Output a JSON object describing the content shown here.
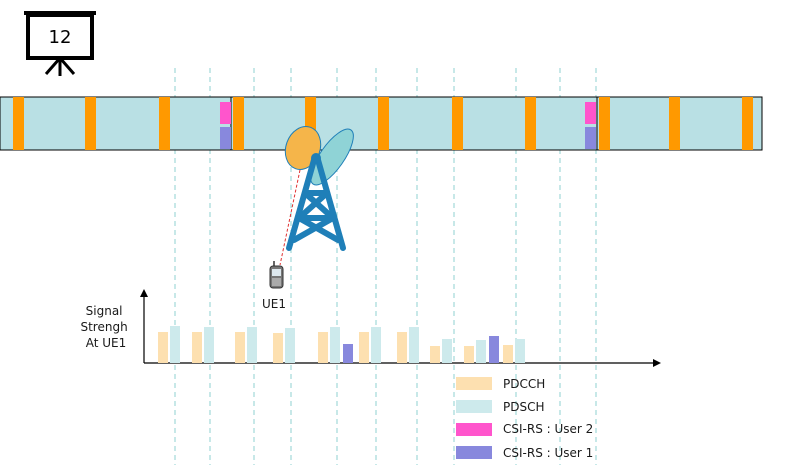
{
  "slide": {
    "number": "12"
  },
  "colors": {
    "pdcch": "#ff9900",
    "pdcch_light": "#fde0b0",
    "pdsch": "#b9e0e4",
    "pdsch_light": "#cdeaec",
    "csi_user2": "#ff55cc",
    "csi_user1": "#8888dd",
    "tower": "#1f7fb8",
    "grid_line": "#8fd0d0",
    "beam_orange": "#f5b54a",
    "beam_teal": "#8fd3d6"
  },
  "icons": {
    "slide": "projector-screen-icon",
    "tower": "cell-tower-icon",
    "ue": "mobile-phone-icon"
  },
  "labels": {
    "ue": "UE1",
    "y_axis_line1": "Signal",
    "y_axis_line2": "Strengh",
    "y_axis_line3": "At UE1"
  },
  "legend": [
    {
      "key": "pdcch",
      "label": "PDCCH"
    },
    {
      "key": "pdsch",
      "label": "PDSCH"
    },
    {
      "key": "csi_user2",
      "label": "CSI-RS : User 2"
    },
    {
      "key": "csi_user1",
      "label": "CSI-RS : User 1"
    }
  ]
}
